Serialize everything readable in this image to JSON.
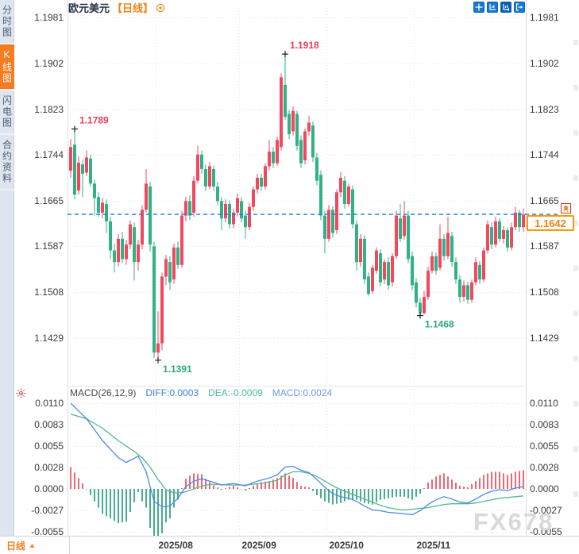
{
  "app": {
    "watermark": "FX678"
  },
  "sidebar": {
    "tabs": [
      {
        "label": "分时图",
        "active": false
      },
      {
        "label": "K线图",
        "active": true
      },
      {
        "label": "闪电图",
        "active": false
      },
      {
        "label": "合约资料",
        "active": false
      }
    ]
  },
  "header": {
    "symbol": "欧元美元",
    "period_tag": "【日线】"
  },
  "toolbar": {
    "icons": [
      "crosshair",
      "axis-range",
      "axis-range-active",
      "exit"
    ]
  },
  "bottom_bar": {
    "period_label": "日线",
    "period_arrow": "▲"
  },
  "chart_data": {
    "type": "candlestick+macd",
    "symbol": "欧元美元 (EUR/USD)",
    "period": "日线",
    "legend_position": "top-left-of-indicator-pane",
    "grid": true,
    "price_axis": {
      "ticks": [
        "1.1981",
        "1.1902",
        "1.1823",
        "1.1744",
        "1.1665",
        "1.1587",
        "1.1508",
        "1.1429"
      ],
      "range": [
        1.1429,
        1.1981
      ]
    },
    "x_axis": {
      "labels": [
        "2025/08",
        "2025/09",
        "2025/10",
        "2025/11"
      ],
      "label_indices": [
        22,
        43,
        65,
        87
      ]
    },
    "last_price": "1.1642",
    "annotations": [
      {
        "index": 1,
        "price": 1.1789,
        "kind": "high",
        "label": "1.1789"
      },
      {
        "index": 54,
        "price": 1.1918,
        "kind": "high",
        "label": "1.1918"
      },
      {
        "index": 22,
        "price": 1.1391,
        "kind": "low",
        "label": "1.1391"
      },
      {
        "index": 88,
        "price": 1.1468,
        "kind": "low",
        "label": "1.1468"
      }
    ],
    "candles": [
      [
        1.1717,
        1.1772,
        1.1705,
        1.1758
      ],
      [
        1.1762,
        1.1789,
        1.1668,
        1.1676
      ],
      [
        1.1683,
        1.1742,
        1.1676,
        1.1731
      ],
      [
        1.1728,
        1.1736,
        1.1672,
        1.1712
      ],
      [
        1.1714,
        1.1752,
        1.1708,
        1.174
      ],
      [
        1.1738,
        1.1745,
        1.169,
        1.1695
      ],
      [
        1.1695,
        1.1702,
        1.164,
        1.167
      ],
      [
        1.1672,
        1.168,
        1.1638,
        1.1645
      ],
      [
        1.1645,
        1.167,
        1.1635,
        1.1662
      ],
      [
        1.166,
        1.1668,
        1.161,
        1.163
      ],
      [
        1.163,
        1.1638,
        1.1565,
        1.158
      ],
      [
        1.158,
        1.1592,
        1.1542,
        1.156
      ],
      [
        1.156,
        1.1608,
        1.1552,
        1.16
      ],
      [
        1.16,
        1.1612,
        1.1558,
        1.1565
      ],
      [
        1.1565,
        1.1598,
        1.1555,
        1.159
      ],
      [
        1.159,
        1.1632,
        1.1582,
        1.1625
      ],
      [
        1.162,
        1.1628,
        1.1528,
        1.156
      ],
      [
        1.156,
        1.1598,
        1.1545,
        1.159
      ],
      [
        1.159,
        1.1658,
        1.1582,
        1.165
      ],
      [
        1.165,
        1.172,
        1.1645,
        1.1695
      ],
      [
        1.169,
        1.1698,
        1.1578,
        1.159
      ],
      [
        1.1587,
        1.1595,
        1.1395,
        1.1404
      ],
      [
        1.1404,
        1.1475,
        1.1391,
        1.142
      ],
      [
        1.142,
        1.1542,
        1.1408,
        1.1535
      ],
      [
        1.1535,
        1.1572,
        1.152,
        1.1565
      ],
      [
        1.156,
        1.157,
        1.1512,
        1.1525
      ],
      [
        1.153,
        1.1592,
        1.1522,
        1.1585
      ],
      [
        1.1585,
        1.1595,
        1.1548,
        1.1555
      ],
      [
        1.1555,
        1.1648,
        1.155,
        1.164
      ],
      [
        1.164,
        1.1672,
        1.163,
        1.1665
      ],
      [
        1.1665,
        1.1675,
        1.1632,
        1.164
      ],
      [
        1.1645,
        1.1708,
        1.1638,
        1.17
      ],
      [
        1.17,
        1.176,
        1.1695,
        1.1745
      ],
      [
        1.1745,
        1.1752,
        1.1712,
        1.172
      ],
      [
        1.172,
        1.1728,
        1.1682,
        1.169
      ],
      [
        1.169,
        1.1732,
        1.1685,
        1.1725
      ],
      [
        1.172,
        1.1726,
        1.1682,
        1.169
      ],
      [
        1.169,
        1.1698,
        1.1658,
        1.1665
      ],
      [
        1.1665,
        1.1672,
        1.1615,
        1.1635
      ],
      [
        1.1635,
        1.1668,
        1.1628,
        1.166
      ],
      [
        1.166,
        1.1666,
        1.1618,
        1.1625
      ],
      [
        1.1625,
        1.1652,
        1.1618,
        1.1645
      ],
      [
        1.1645,
        1.1678,
        1.1638,
        1.167
      ],
      [
        1.1665,
        1.1672,
        1.1628,
        1.1635
      ],
      [
        1.164,
        1.1648,
        1.16,
        1.162
      ],
      [
        1.162,
        1.1662,
        1.1615,
        1.1655
      ],
      [
        1.1655,
        1.169,
        1.1648,
        1.1685
      ],
      [
        1.1685,
        1.1712,
        1.1678,
        1.1705
      ],
      [
        1.1705,
        1.1712,
        1.1682,
        1.169
      ],
      [
        1.169,
        1.173,
        1.1685,
        1.1725
      ],
      [
        1.1725,
        1.177,
        1.1718,
        1.175
      ],
      [
        1.175,
        1.1758,
        1.1722,
        1.173
      ],
      [
        1.173,
        1.1775,
        1.1725,
        1.177
      ],
      [
        1.1758,
        1.1885,
        1.1752,
        1.1878
      ],
      [
        1.1865,
        1.1918,
        1.1805,
        1.181
      ],
      [
        1.1815,
        1.1822,
        1.1772,
        1.178
      ],
      [
        1.1785,
        1.1828,
        1.1778,
        1.182
      ],
      [
        1.1815,
        1.182,
        1.1752,
        1.176
      ],
      [
        1.177,
        1.1778,
        1.1722,
        1.173
      ],
      [
        1.1735,
        1.179,
        1.1728,
        1.1785
      ],
      [
        1.1785,
        1.1812,
        1.1778,
        1.18
      ],
      [
        1.1795,
        1.1802,
        1.1732,
        1.174
      ],
      [
        1.174,
        1.1748,
        1.1692,
        1.17
      ],
      [
        1.171,
        1.1718,
        1.1632,
        1.164
      ],
      [
        1.164,
        1.1648,
        1.1575,
        1.16
      ],
      [
        1.16,
        1.1658,
        1.1595,
        1.165
      ],
      [
        1.165,
        1.1656,
        1.1602,
        1.161
      ],
      [
        1.1615,
        1.1685,
        1.1608,
        1.168
      ],
      [
        1.168,
        1.1715,
        1.1672,
        1.1705
      ],
      [
        1.17,
        1.1708,
        1.1652,
        1.166
      ],
      [
        1.166,
        1.1695,
        1.1655,
        1.169
      ],
      [
        1.1685,
        1.1692,
        1.1618,
        1.1625
      ],
      [
        1.1625,
        1.1632,
        1.1545,
        1.156
      ],
      [
        1.156,
        1.1608,
        1.1552,
        1.16
      ],
      [
        1.16,
        1.1606,
        1.1522,
        1.153
      ],
      [
        1.1535,
        1.1542,
        1.1502,
        1.1505
      ],
      [
        1.151,
        1.1555,
        1.1505,
        1.155
      ],
      [
        1.1545,
        1.1585,
        1.154,
        1.158
      ],
      [
        1.1575,
        1.1582,
        1.1518,
        1.1525
      ],
      [
        1.153,
        1.1565,
        1.1522,
        1.156
      ],
      [
        1.156,
        1.1568,
        1.1512,
        1.152
      ],
      [
        1.1525,
        1.1575,
        1.1518,
        1.157
      ],
      [
        1.157,
        1.1648,
        1.1565,
        1.164
      ],
      [
        1.1635,
        1.166,
        1.1595,
        1.16
      ],
      [
        1.1605,
        1.1665,
        1.1598,
        1.164
      ],
      [
        1.164,
        1.1648,
        1.1558,
        1.1565
      ],
      [
        1.157,
        1.1578,
        1.1512,
        1.152
      ],
      [
        1.1525,
        1.1532,
        1.1482,
        1.149
      ],
      [
        1.149,
        1.1498,
        1.1468,
        1.1472
      ],
      [
        1.1472,
        1.151,
        1.147,
        1.15
      ],
      [
        1.15,
        1.1552,
        1.1495,
        1.1545
      ],
      [
        1.1545,
        1.1578,
        1.154,
        1.157
      ],
      [
        1.157,
        1.1576,
        1.1538,
        1.1545
      ],
      [
        1.155,
        1.1625,
        1.1545,
        1.16
      ],
      [
        1.16,
        1.1608,
        1.1562,
        1.157
      ],
      [
        1.157,
        1.1638,
        1.1565,
        1.161
      ],
      [
        1.1605,
        1.1612,
        1.1552,
        1.156
      ],
      [
        1.156,
        1.1568,
        1.1522,
        1.153
      ],
      [
        1.153,
        1.1538,
        1.149,
        1.15
      ],
      [
        1.15,
        1.1528,
        1.1492,
        1.152
      ],
      [
        1.152,
        1.1526,
        1.1488,
        1.1495
      ],
      [
        1.1495,
        1.153,
        1.149,
        1.1525
      ],
      [
        1.1525,
        1.1568,
        1.152,
        1.156
      ],
      [
        1.1555,
        1.1562,
        1.1522,
        1.153
      ],
      [
        1.153,
        1.1585,
        1.1525,
        1.158
      ],
      [
        1.158,
        1.1632,
        1.1575,
        1.1625
      ],
      [
        1.162,
        1.1628,
        1.1582,
        1.159
      ],
      [
        1.159,
        1.1638,
        1.1585,
        1.163
      ],
      [
        1.163,
        1.1636,
        1.1595,
        1.16
      ],
      [
        1.16,
        1.1622,
        1.1592,
        1.1615
      ],
      [
        1.1615,
        1.162,
        1.1578,
        1.1585
      ],
      [
        1.1585,
        1.1628,
        1.158,
        1.162
      ],
      [
        1.162,
        1.1655,
        1.1615,
        1.1645
      ],
      [
        1.1645,
        1.165,
        1.1612,
        1.162
      ],
      [
        1.162,
        1.1652,
        1.1612,
        1.1642
      ]
    ],
    "macd": {
      "title": "MACD(26,12,9)",
      "diff_label": "DIFF:0.0003",
      "dea_label": "DEA:-0.0009",
      "macd_label": "MACD:0.0024",
      "axis_ticks": [
        "0.0110",
        "0.0083",
        "0.0055",
        "0.0028",
        "0.0000",
        "-0.0027",
        "-0.0055"
      ],
      "diff_keypoints": [
        [
          0,
          0.011
        ],
        [
          4,
          0.009
        ],
        [
          8,
          0.0062
        ],
        [
          12,
          0.004
        ],
        [
          14,
          0.0034
        ],
        [
          17,
          0.0042
        ],
        [
          19,
          0.0022
        ],
        [
          21,
          -0.0016
        ],
        [
          23,
          -0.0023
        ],
        [
          25,
          -0.0022
        ],
        [
          27,
          -0.0012
        ],
        [
          29,
          0.0003
        ],
        [
          31,
          0.001
        ],
        [
          33,
          0.0013
        ],
        [
          35,
          0.001
        ],
        [
          38,
          0.0005
        ],
        [
          41,
          0.0007
        ],
        [
          44,
          0.0004
        ],
        [
          47,
          0.001
        ],
        [
          50,
          0.0014
        ],
        [
          52,
          0.0018
        ],
        [
          54,
          0.0028
        ],
        [
          56,
          0.0029
        ],
        [
          58,
          0.0024
        ],
        [
          60,
          0.0021
        ],
        [
          62,
          0.0012
        ],
        [
          64,
          0.0002
        ],
        [
          66,
          -0.0006
        ],
        [
          68,
          -0.001
        ],
        [
          70,
          -0.0012
        ],
        [
          72,
          -0.0016
        ],
        [
          74,
          -0.0022
        ],
        [
          76,
          -0.0027
        ],
        [
          78,
          -0.0028
        ],
        [
          80,
          -0.003
        ],
        [
          82,
          -0.0031
        ],
        [
          84,
          -0.0032
        ],
        [
          86,
          -0.0033
        ],
        [
          88,
          -0.0028
        ],
        [
          90,
          -0.002
        ],
        [
          92,
          -0.0014
        ],
        [
          94,
          -0.001
        ],
        [
          96,
          -0.0013
        ],
        [
          98,
          -0.0017
        ],
        [
          100,
          -0.0018
        ],
        [
          102,
          -0.0013
        ],
        [
          104,
          -0.0007
        ],
        [
          106,
          -0.0003
        ],
        [
          108,
          -0.0001
        ],
        [
          110,
          -0.0002
        ],
        [
          112,
          0.0001
        ],
        [
          114,
          0.0003
        ]
      ],
      "dea_keypoints": [
        [
          0,
          0.0096
        ],
        [
          4,
          0.009
        ],
        [
          8,
          0.0078
        ],
        [
          12,
          0.0062
        ],
        [
          16,
          0.0048
        ],
        [
          18,
          0.004
        ],
        [
          20,
          0.0028
        ],
        [
          22,
          0.0012
        ],
        [
          24,
          -0.0001
        ],
        [
          26,
          -0.0005
        ],
        [
          28,
          -0.0005
        ],
        [
          30,
          -0.0002
        ],
        [
          32,
          0.0002
        ],
        [
          34,
          0.0005
        ],
        [
          36,
          0.0006
        ],
        [
          40,
          0.0005
        ],
        [
          44,
          0.0005
        ],
        [
          48,
          0.0007
        ],
        [
          52,
          0.0011
        ],
        [
          54,
          0.0018
        ],
        [
          56,
          0.0022
        ],
        [
          58,
          0.0022
        ],
        [
          60,
          0.002
        ],
        [
          62,
          0.0016
        ],
        [
          64,
          0.001
        ],
        [
          66,
          0.0004
        ],
        [
          68,
          -0.0001
        ],
        [
          70,
          -0.0005
        ],
        [
          72,
          -0.0009
        ],
        [
          74,
          -0.0013
        ],
        [
          76,
          -0.0017
        ],
        [
          78,
          -0.0021
        ],
        [
          80,
          -0.0024
        ],
        [
          82,
          -0.0026
        ],
        [
          84,
          -0.0027
        ],
        [
          86,
          -0.0026
        ],
        [
          88,
          -0.0025
        ],
        [
          90,
          -0.0024
        ],
        [
          92,
          -0.0022
        ],
        [
          94,
          -0.002
        ],
        [
          96,
          -0.0019
        ],
        [
          98,
          -0.0019
        ],
        [
          100,
          -0.0019
        ],
        [
          102,
          -0.0018
        ],
        [
          104,
          -0.0016
        ],
        [
          106,
          -0.0014
        ],
        [
          108,
          -0.0012
        ],
        [
          110,
          -0.0011
        ],
        [
          112,
          -0.001
        ],
        [
          114,
          -0.0009
        ]
      ],
      "histogram_rule": "2*(DIFF-DEA)"
    },
    "colors": {
      "up": "#f1475f",
      "down": "#2eb286",
      "annotation_high": "#e83e5c",
      "annotation_low": "#2aa883",
      "dashed_line": "#1c77e8",
      "diff_line": "#4a8be8",
      "dea_line": "#56b690",
      "hist_up": "#e96a76",
      "hist_down": "#46ad8d",
      "grid": "#dfe3ea",
      "axis_text": "#3a3a3a",
      "accent_orange": "#f57d1f",
      "toolbar_blue": "#1777d1"
    }
  }
}
